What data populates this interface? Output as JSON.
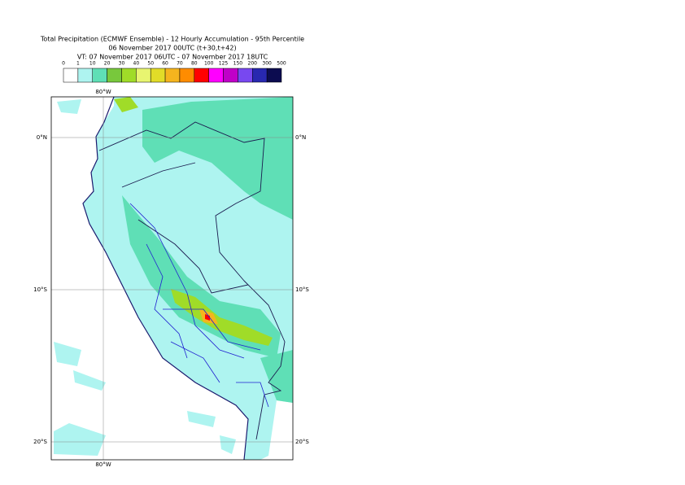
{
  "header": {
    "title": "Total Precipitation (ECMWF Ensemble) - 12 Hourly Accumulation - 95th Percentile",
    "line2": "06 November 2017 00UTC (t+30,t+42)",
    "line3": "VT: 07 November 2017 06UTC - 07 November 2017 18UTC"
  },
  "legend": {
    "labels": [
      0,
      1,
      10,
      20,
      30,
      40,
      50,
      60,
      70,
      80,
      100,
      125,
      150,
      200,
      300,
      500
    ],
    "colors": [
      "#ffffff",
      "#aef4f0",
      "#5fdfb6",
      "#78c83c",
      "#a0dc28",
      "#e8f570",
      "#e2dc28",
      "#f5b41e",
      "#ff8c00",
      "#ff0000",
      "#ff00ff",
      "#c000c8",
      "#7848f0",
      "#2828b0",
      "#0c0c50"
    ]
  },
  "map": {
    "x_labels": [
      "80°W"
    ],
    "y_labels": [
      "0°N",
      "10°S",
      "20°S"
    ]
  }
}
